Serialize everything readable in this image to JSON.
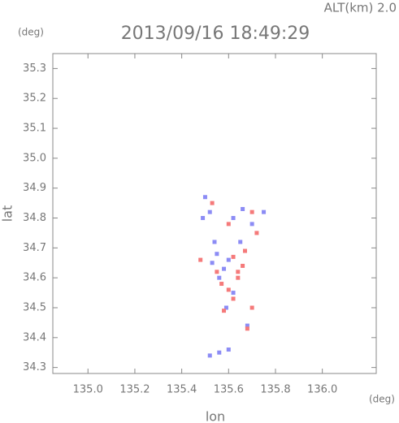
{
  "chart_data": {
    "type": "scatter",
    "title": "2013/09/16 18:49:29",
    "subtitle": "ALT(km) 2.0",
    "x_label": "lon",
    "y_label": "lat",
    "x_unit": "(deg)",
    "y_unit": "(deg)",
    "xlim": [
      134.85,
      136.23
    ],
    "ylim": [
      34.28,
      35.35
    ],
    "xticks": [
      {
        "value": 135.0,
        "label": "135.0"
      },
      135.2,
      135.4,
      135.6,
      135.8,
      {
        "value": 136.0,
        "label": "136.0"
      }
    ],
    "yticks": [
      34.3,
      34.4,
      34.5,
      34.6,
      34.7,
      34.8,
      34.9,
      {
        "value": 35.0,
        "label": "35.0"
      },
      35.1,
      35.2,
      35.3
    ],
    "series": [
      {
        "color": "#8c8cf5",
        "x": [
          135.5,
          135.52,
          135.49,
          135.62,
          135.66,
          135.75,
          135.55,
          135.53,
          135.58,
          135.56,
          135.6,
          135.62,
          135.59,
          135.68,
          135.56,
          135.6,
          135.52,
          135.65,
          135.7,
          135.54
        ],
        "y": [
          34.87,
          34.82,
          34.8,
          34.8,
          34.83,
          34.82,
          34.68,
          34.65,
          34.63,
          34.6,
          34.66,
          34.55,
          34.5,
          34.44,
          34.35,
          34.36,
          34.34,
          34.72,
          34.78,
          34.72
        ]
      },
      {
        "color": "#f57a7a",
        "x": [
          135.53,
          135.6,
          135.7,
          135.72,
          135.62,
          135.66,
          135.64,
          135.57,
          135.6,
          135.58,
          135.7,
          135.68,
          135.64,
          135.55,
          135.48,
          135.67,
          135.62
        ],
        "y": [
          34.85,
          34.78,
          34.82,
          34.75,
          34.67,
          34.64,
          34.6,
          34.58,
          34.56,
          34.49,
          34.5,
          34.43,
          34.62,
          34.62,
          34.66,
          34.69,
          34.53
        ]
      }
    ]
  }
}
